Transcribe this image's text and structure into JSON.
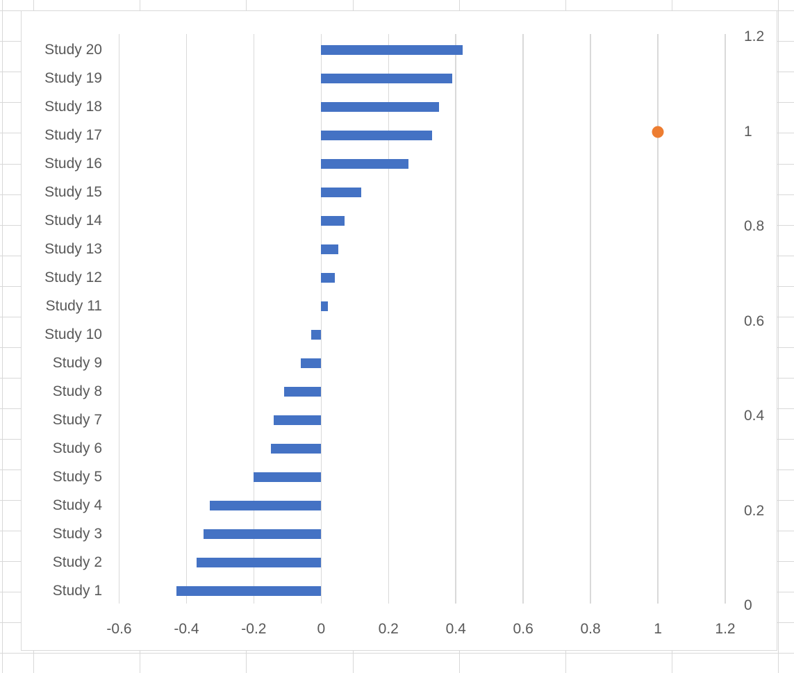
{
  "chart_data": {
    "type": "bar",
    "orientation": "horizontal",
    "title": "",
    "legend": false,
    "grid": true,
    "categories": [
      "Study 1",
      "Study 2",
      "Study 3",
      "Study 4",
      "Study 5",
      "Study 6",
      "Study 7",
      "Study 8",
      "Study 9",
      "Study 10",
      "Study 11",
      "Study 12",
      "Study 13",
      "Study 14",
      "Study 15",
      "Study 16",
      "Study 17",
      "Study 18",
      "Study 19",
      "Study 20"
    ],
    "series": [
      {
        "type": "bar",
        "color": "#4472C4",
        "values": [
          -0.43,
          -0.37,
          -0.35,
          -0.33,
          -0.2,
          -0.15,
          -0.14,
          -0.11,
          -0.06,
          -0.03,
          0.02,
          0.04,
          0.05,
          0.07,
          0.12,
          0.26,
          0.33,
          0.35,
          0.39,
          0.42
        ]
      },
      {
        "type": "scatter",
        "axis": "secondary",
        "color": "#ED7D31",
        "points": [
          {
            "x": 1,
            "y": 1
          }
        ]
      }
    ],
    "x_axis": {
      "min": -0.6,
      "max": 1.2,
      "tick_step": 0.2,
      "tick_labels": [
        "-0.6",
        "-0.4",
        "-0.2",
        "0",
        "0.2",
        "0.4",
        "0.6",
        "0.8",
        "1",
        "1.2"
      ]
    },
    "secondary_y_axis": {
      "min": 0,
      "max": 1.2,
      "tick_labels": [
        "0",
        "0.2",
        "0.4",
        "0.6",
        "0.8",
        "1",
        "1.2"
      ]
    },
    "colors": {
      "bar": "#4472C4",
      "point": "#ED7D31",
      "gridline": "#D9D9D9",
      "label": "#595959"
    }
  }
}
